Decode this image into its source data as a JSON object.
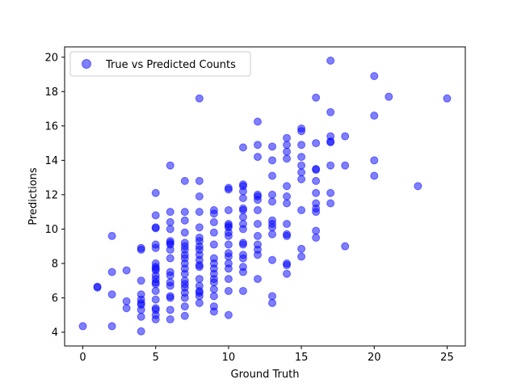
{
  "chart_data": {
    "type": "scatter",
    "xlabel": "Ground Truth",
    "ylabel": "Predictions",
    "xlim": [
      -1.25,
      26.25
    ],
    "ylim": [
      3.2,
      20.6
    ],
    "xticks": [
      0,
      5,
      10,
      15,
      20,
      25
    ],
    "yticks": [
      4,
      6,
      8,
      10,
      12,
      14,
      16,
      18,
      20
    ],
    "grid": false,
    "legend_position": "top-left",
    "series": [
      {
        "name": "True vs Predicted Counts",
        "color": "#0000ff",
        "alpha": 0.5,
        "points": [
          [
            0,
            4.35
          ],
          [
            1,
            6.6
          ],
          [
            1,
            6.65
          ],
          [
            2,
            9.6
          ],
          [
            2,
            7.5
          ],
          [
            2,
            6.2
          ],
          [
            2,
            4.35
          ],
          [
            3,
            7.6
          ],
          [
            3,
            5.8
          ],
          [
            3,
            5.4
          ],
          [
            4,
            8.9
          ],
          [
            4,
            8.8
          ],
          [
            4,
            7.0
          ],
          [
            4,
            6.2
          ],
          [
            4,
            5.9
          ],
          [
            4,
            5.7
          ],
          [
            4,
            5.6
          ],
          [
            4,
            5.3
          ],
          [
            4,
            4.9
          ],
          [
            4,
            4.05
          ],
          [
            5,
            12.1
          ],
          [
            5,
            10.8
          ],
          [
            5,
            10.1
          ],
          [
            5,
            10.05
          ],
          [
            5,
            9.1
          ],
          [
            5,
            8.9
          ],
          [
            5,
            8.0
          ],
          [
            5,
            7.8
          ],
          [
            5,
            7.7
          ],
          [
            5,
            7.6
          ],
          [
            5,
            7.3
          ],
          [
            5,
            7.1
          ],
          [
            5,
            6.9
          ],
          [
            5,
            6.8
          ],
          [
            5,
            6.4
          ],
          [
            5,
            5.9
          ],
          [
            5,
            5.4
          ],
          [
            5,
            5.3
          ],
          [
            5,
            5.0
          ],
          [
            5,
            4.75
          ],
          [
            6,
            13.7
          ],
          [
            6,
            11.0
          ],
          [
            6,
            10.4
          ],
          [
            6,
            10.0
          ],
          [
            6,
            9.3
          ],
          [
            6,
            9.2
          ],
          [
            6,
            9.1
          ],
          [
            6,
            8.8
          ],
          [
            6,
            8.3
          ],
          [
            6,
            7.5
          ],
          [
            6,
            7.3
          ],
          [
            6,
            6.9
          ],
          [
            6,
            6.7
          ],
          [
            6,
            6.1
          ],
          [
            6,
            6.0
          ],
          [
            6,
            5.3
          ],
          [
            6,
            4.75
          ],
          [
            7,
            12.8
          ],
          [
            7,
            11.0
          ],
          [
            7,
            10.5
          ],
          [
            7,
            9.8
          ],
          [
            7,
            9.2
          ],
          [
            7,
            9.0
          ],
          [
            7,
            8.8
          ],
          [
            7,
            8.5
          ],
          [
            7,
            8.3
          ],
          [
            7,
            8.0
          ],
          [
            7,
            7.7
          ],
          [
            7,
            7.4
          ],
          [
            7,
            7.0
          ],
          [
            7,
            6.8
          ],
          [
            7,
            6.6
          ],
          [
            7,
            6.3
          ],
          [
            7,
            6.0
          ],
          [
            7,
            5.5
          ],
          [
            7,
            4.95
          ],
          [
            8,
            17.6
          ],
          [
            8,
            12.8
          ],
          [
            8,
            11.9
          ],
          [
            8,
            11.0
          ],
          [
            8,
            10.1
          ],
          [
            8,
            9.5
          ],
          [
            8,
            9.3
          ],
          [
            8,
            9.0
          ],
          [
            8,
            8.8
          ],
          [
            8,
            8.5
          ],
          [
            8,
            8.2
          ],
          [
            8,
            7.9
          ],
          [
            8,
            7.8
          ],
          [
            8,
            7.1
          ],
          [
            8,
            6.7
          ],
          [
            8,
            6.4
          ],
          [
            8,
            6.3
          ],
          [
            8,
            6.1
          ],
          [
            8,
            5.7
          ],
          [
            9,
            11.1
          ],
          [
            9,
            10.9
          ],
          [
            9,
            10.4
          ],
          [
            9,
            9.8
          ],
          [
            9,
            9.1
          ],
          [
            9,
            8.3
          ],
          [
            9,
            8.0
          ],
          [
            9,
            7.7
          ],
          [
            9,
            7.4
          ],
          [
            9,
            7.1
          ],
          [
            9,
            6.9
          ],
          [
            9,
            6.5
          ],
          [
            9,
            6.1
          ],
          [
            9,
            5.5
          ],
          [
            9,
            5.2
          ],
          [
            10,
            12.4
          ],
          [
            10,
            12.3
          ],
          [
            10,
            11.1
          ],
          [
            10,
            10.3
          ],
          [
            10,
            10.2
          ],
          [
            10,
            10.1
          ],
          [
            10,
            9.8
          ],
          [
            10,
            9.6
          ],
          [
            10,
            9.1
          ],
          [
            10,
            8.6
          ],
          [
            10,
            8.4
          ],
          [
            10,
            8.0
          ],
          [
            10,
            7.7
          ],
          [
            10,
            7.1
          ],
          [
            10,
            6.4
          ],
          [
            10,
            5.0
          ],
          [
            11,
            14.75
          ],
          [
            11,
            12.6
          ],
          [
            11,
            12.5
          ],
          [
            11,
            12.2
          ],
          [
            11,
            11.8
          ],
          [
            11,
            11.2
          ],
          [
            11,
            11.1
          ],
          [
            11,
            10.7
          ],
          [
            11,
            10.3
          ],
          [
            11,
            10.0
          ],
          [
            11,
            9.2
          ],
          [
            11,
            9.1
          ],
          [
            11,
            8.5
          ],
          [
            11,
            8.3
          ],
          [
            11,
            7.8
          ],
          [
            11,
            7.5
          ],
          [
            11,
            6.4
          ],
          [
            12,
            16.25
          ],
          [
            12,
            14.9
          ],
          [
            12,
            14.2
          ],
          [
            12,
            12.0
          ],
          [
            12,
            11.9
          ],
          [
            12,
            11.7
          ],
          [
            12,
            11.1
          ],
          [
            12,
            10.3
          ],
          [
            12,
            9.6
          ],
          [
            12,
            9.1
          ],
          [
            12,
            8.8
          ],
          [
            12,
            8.5
          ],
          [
            12,
            7.1
          ],
          [
            13,
            14.8
          ],
          [
            13,
            14.0
          ],
          [
            13,
            13.1
          ],
          [
            13,
            12.0
          ],
          [
            13,
            11.6
          ],
          [
            13,
            10.5
          ],
          [
            13,
            10.3
          ],
          [
            13,
            10.1
          ],
          [
            13,
            9.7
          ],
          [
            13,
            8.2
          ],
          [
            13,
            6.1
          ],
          [
            13,
            5.7
          ],
          [
            14,
            15.3
          ],
          [
            14,
            14.9
          ],
          [
            14,
            14.5
          ],
          [
            14,
            14.1
          ],
          [
            14,
            12.5
          ],
          [
            14,
            11.9
          ],
          [
            14,
            11.5
          ],
          [
            14,
            10.3
          ],
          [
            14,
            9.7
          ],
          [
            14,
            9.6
          ],
          [
            14,
            8.0
          ],
          [
            14,
            7.9
          ],
          [
            14,
            7.4
          ],
          [
            15,
            15.85
          ],
          [
            15,
            15.7
          ],
          [
            15,
            14.9
          ],
          [
            15,
            14.2
          ],
          [
            15,
            13.7
          ],
          [
            15,
            13.3
          ],
          [
            15,
            12.9
          ],
          [
            15,
            11.1
          ],
          [
            15,
            8.85
          ],
          [
            15,
            8.4
          ],
          [
            16,
            17.65
          ],
          [
            16,
            15.0
          ],
          [
            16,
            13.5
          ],
          [
            16,
            13.45
          ],
          [
            16,
            12.8
          ],
          [
            16,
            12.1
          ],
          [
            16,
            11.5
          ],
          [
            16,
            11.2
          ],
          [
            16,
            11.0
          ],
          [
            16,
            9.9
          ],
          [
            16,
            9.5
          ],
          [
            17,
            19.8
          ],
          [
            17,
            16.8
          ],
          [
            17,
            15.4
          ],
          [
            17,
            15.1
          ],
          [
            17,
            15.05
          ],
          [
            17,
            13.7
          ],
          [
            17,
            12.1
          ],
          [
            17,
            11.5
          ],
          [
            18,
            15.4
          ],
          [
            18,
            13.7
          ],
          [
            18,
            9.0
          ],
          [
            20,
            18.9
          ],
          [
            20,
            16.6
          ],
          [
            20,
            14.0
          ],
          [
            20,
            13.1
          ],
          [
            21,
            17.7
          ],
          [
            23,
            12.5
          ],
          [
            25,
            17.6
          ]
        ]
      }
    ]
  }
}
